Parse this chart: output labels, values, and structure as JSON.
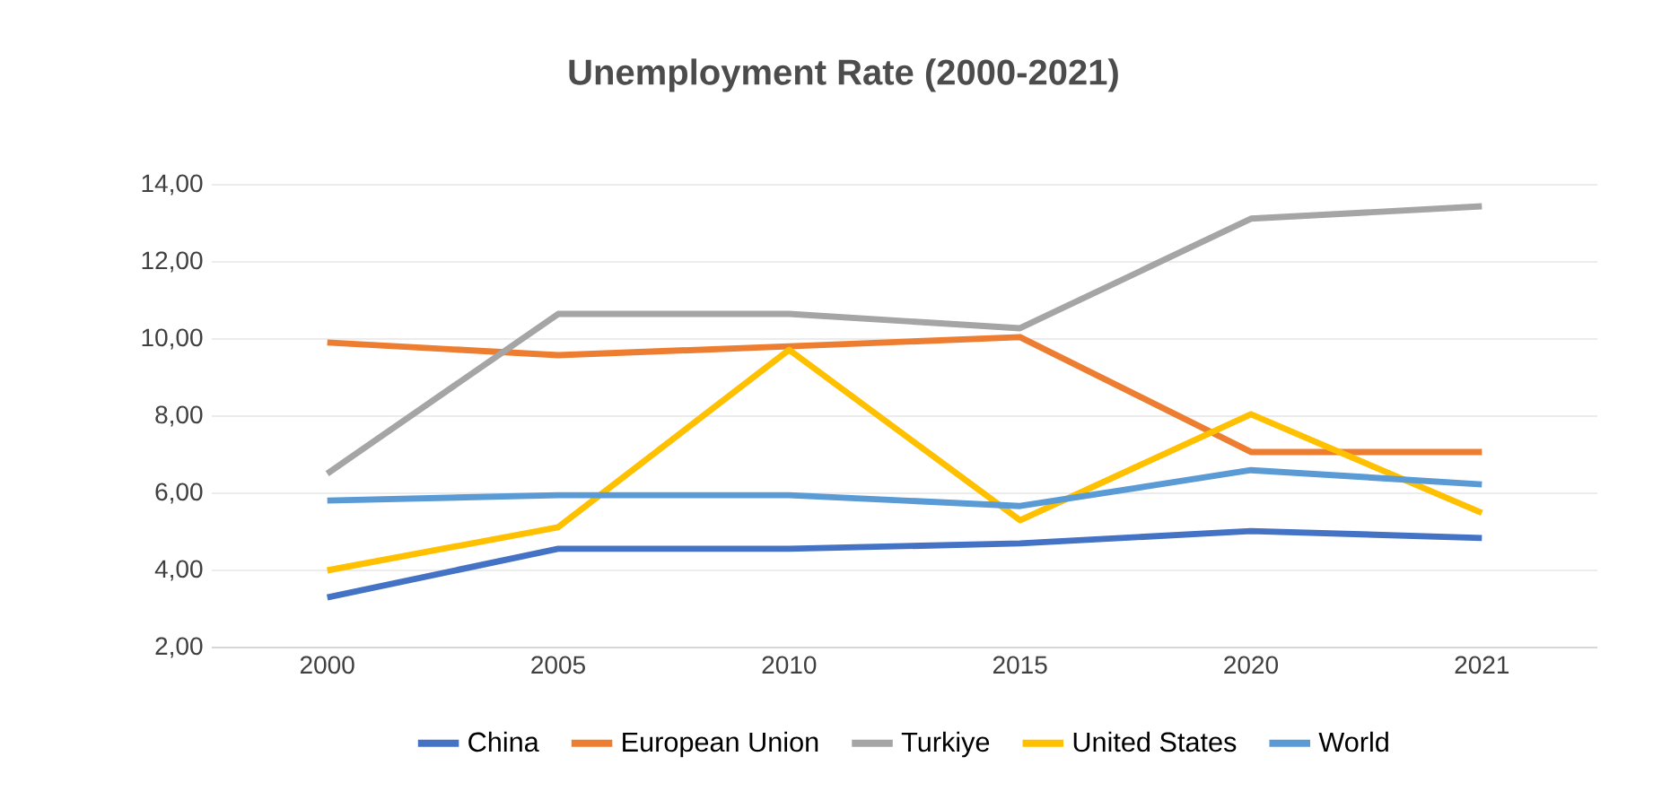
{
  "chart_data": {
    "type": "line",
    "title": "Unemployment Rate (2000-2021)",
    "categories": [
      "2000",
      "2005",
      "2010",
      "2015",
      "2020",
      "2021"
    ],
    "series": [
      {
        "name": "China",
        "color": "#4472c4",
        "values": [
          3.3,
          4.56,
          4.56,
          4.7,
          5.02,
          4.84
        ]
      },
      {
        "name": "European Union",
        "color": "#ed7d31",
        "values": [
          9.91,
          9.58,
          9.81,
          10.05,
          7.07,
          7.07
        ]
      },
      {
        "name": "Turkiye",
        "color": "#a5a5a5",
        "values": [
          6.51,
          10.65,
          10.65,
          10.28,
          13.12,
          13.44
        ]
      },
      {
        "name": "United States",
        "color": "#ffc000",
        "values": [
          4.0,
          5.12,
          9.72,
          5.3,
          8.05,
          5.49
        ]
      },
      {
        "name": "World",
        "color": "#5b9bd5",
        "values": [
          5.81,
          5.95,
          5.95,
          5.67,
          6.6,
          6.23
        ]
      }
    ],
    "ylim": [
      2,
      14
    ],
    "yticks": [
      {
        "value": 2,
        "label": "2,00"
      },
      {
        "value": 4,
        "label": "4,00"
      },
      {
        "value": 6,
        "label": "6,00"
      },
      {
        "value": 8,
        "label": "8,00"
      },
      {
        "value": 10,
        "label": "10,00"
      },
      {
        "value": 12,
        "label": "12,00"
      },
      {
        "value": 14,
        "label": "14,00"
      }
    ],
    "grid": "y",
    "legend": "bottom",
    "marker": "none",
    "line_style": "solid"
  }
}
